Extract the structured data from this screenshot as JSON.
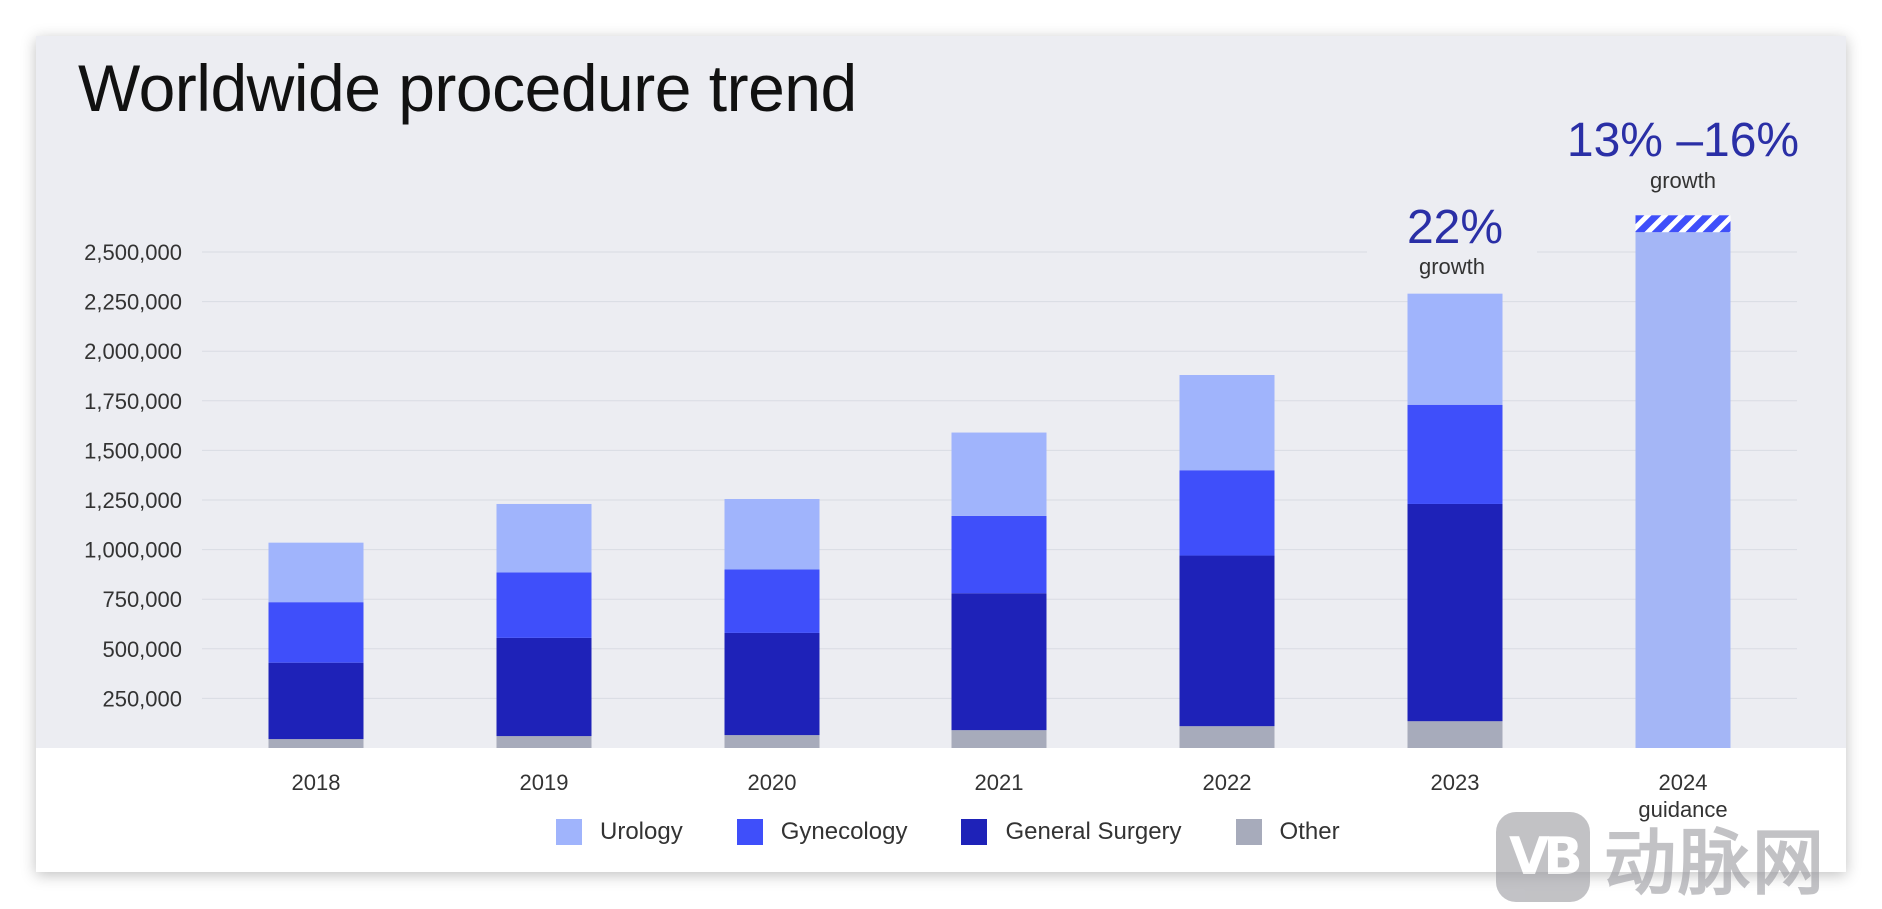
{
  "title": "Worldwide procedure trend",
  "chart_data": {
    "type": "bar",
    "stacked": true,
    "title": "Worldwide procedure trend",
    "xlabel": "",
    "ylabel": "",
    "ylim": [
      0,
      2500000
    ],
    "yticks": [
      250000,
      500000,
      750000,
      1000000,
      1250000,
      1500000,
      1750000,
      2000000,
      2250000,
      2500000
    ],
    "ytick_labels": [
      "250,000",
      "500,000",
      "750,000",
      "1,000,000",
      "1,250,000",
      "1,500,000",
      "1,750,000",
      "2,000,000",
      "2,250,000",
      "2,500,000"
    ],
    "grid": true,
    "categories": [
      "2018",
      "2019",
      "2020",
      "2021",
      "2022",
      "2023",
      "2024"
    ],
    "category_sublabels": [
      "",
      "",
      "",
      "",
      "",
      "",
      "guidance"
    ],
    "series": [
      {
        "name": "Other",
        "color": "#a7abbb",
        "values": [
          45000,
          60000,
          65000,
          90000,
          110000,
          135000,
          null
        ]
      },
      {
        "name": "General Surgery",
        "color": "#1e22b8",
        "values": [
          385000,
          495000,
          515000,
          690000,
          860000,
          1095000,
          null
        ]
      },
      {
        "name": "Gynecology",
        "color": "#3f4ffa",
        "values": [
          305000,
          330000,
          320000,
          390000,
          430000,
          500000,
          null
        ]
      },
      {
        "name": "Urology",
        "color": "#a0b4fc",
        "values": [
          300000,
          345000,
          355000,
          420000,
          480000,
          560000,
          null
        ]
      }
    ],
    "guidance": {
      "category": "2024",
      "color": "#a4b6f6",
      "low": 2600000,
      "high": 2685000,
      "growth_label": "13% –16%",
      "growth_caption": "growth"
    },
    "annotations": [
      {
        "category": "2023",
        "label": "22%",
        "caption": "growth"
      }
    ],
    "legend": {
      "position": "bottom",
      "order": [
        "Urology",
        "Gynecology",
        "General Surgery",
        "Other"
      ]
    }
  },
  "watermark": {
    "logo": "VB",
    "text": "动脉网"
  }
}
